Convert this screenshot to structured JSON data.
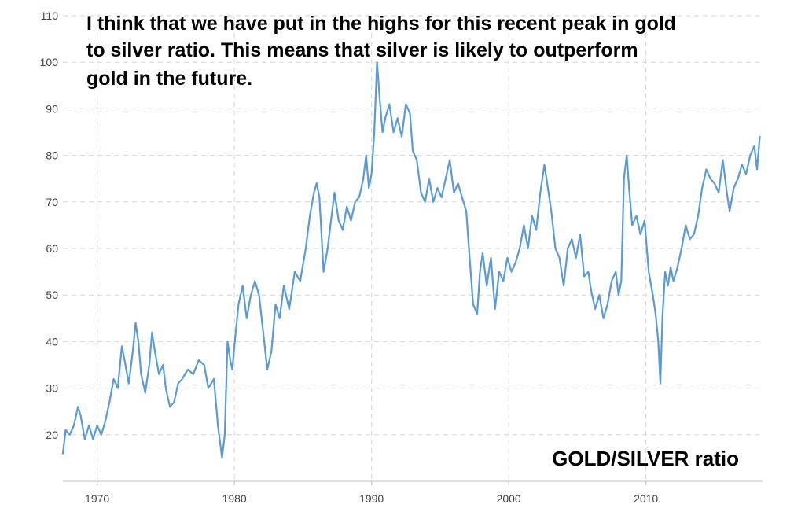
{
  "annotation": {
    "lines": [
      "I think that we have put in the highs for this recent peak in gold",
      "to silver ratio. This means that silver is likely to outperform",
      "gold in the future."
    ]
  },
  "chart_data": {
    "type": "line",
    "title": "GOLD/SILVER ratio",
    "xlabel": "",
    "ylabel": "",
    "xlim": [
      1967.5,
      2018.5
    ],
    "ylim": [
      10,
      110
    ],
    "yticks": [
      20,
      30,
      40,
      50,
      60,
      70,
      80,
      90,
      100,
      110
    ],
    "xticks": [
      1970,
      1980,
      1990,
      2000,
      2010
    ],
    "grid": true,
    "legend": "none",
    "colors": {
      "line": "#5b9bd5",
      "grid": "#d6d6d6",
      "text": "#444444"
    },
    "series": [
      {
        "name": "",
        "x": [
          1967.5,
          1967.7,
          1968.0,
          1968.3,
          1968.6,
          1968.8,
          1969.1,
          1969.4,
          1969.7,
          1970.0,
          1970.3,
          1970.6,
          1970.9,
          1971.2,
          1971.5,
          1971.8,
          1972.0,
          1972.3,
          1972.6,
          1972.8,
          1973.0,
          1973.2,
          1973.5,
          1973.8,
          1974.0,
          1974.2,
          1974.5,
          1974.8,
          1975.0,
          1975.3,
          1975.6,
          1975.9,
          1976.2,
          1976.6,
          1977.0,
          1977.4,
          1977.8,
          1978.1,
          1978.5,
          1978.8,
          1979.1,
          1979.3,
          1979.5,
          1979.7,
          1979.85,
          1980.0,
          1980.3,
          1980.6,
          1980.9,
          1981.2,
          1981.5,
          1981.8,
          1982.1,
          1982.4,
          1982.7,
          1983.0,
          1983.3,
          1983.6,
          1984.0,
          1984.4,
          1984.8,
          1985.2,
          1985.5,
          1985.8,
          1986.0,
          1986.2,
          1986.5,
          1986.8,
          1987.0,
          1987.3,
          1987.6,
          1987.9,
          1988.2,
          1988.5,
          1988.8,
          1989.1,
          1989.4,
          1989.6,
          1989.8,
          1990.0,
          1990.2,
          1990.4,
          1990.6,
          1990.8,
          1991.0,
          1991.3,
          1991.6,
          1991.9,
          1992.2,
          1992.5,
          1992.8,
          1993.0,
          1993.3,
          1993.6,
          1993.9,
          1994.2,
          1994.5,
          1994.8,
          1995.1,
          1995.4,
          1995.7,
          1996.0,
          1996.3,
          1996.6,
          1996.9,
          1997.1,
          1997.4,
          1997.7,
          1997.9,
          1998.1,
          1998.4,
          1998.7,
          1999.0,
          1999.3,
          1999.6,
          1999.9,
          2000.2,
          2000.5,
          2000.8,
          2001.1,
          2001.4,
          2001.7,
          2002.0,
          2002.3,
          2002.6,
          2002.9,
          2003.1,
          2003.4,
          2003.7,
          2004.0,
          2004.3,
          2004.6,
          2004.9,
          2005.2,
          2005.5,
          2005.8,
          2006.0,
          2006.3,
          2006.6,
          2006.9,
          2007.2,
          2007.5,
          2007.8,
          2008.0,
          2008.2,
          2008.4,
          2008.6,
          2008.8,
          2009.0,
          2009.3,
          2009.6,
          2009.9,
          2010.2,
          2010.5,
          2010.7,
          2010.9,
          2011.05,
          2011.2,
          2011.4,
          2011.6,
          2011.8,
          2012.0,
          2012.3,
          2012.6,
          2012.9,
          2013.2,
          2013.5,
          2013.8,
          2014.1,
          2014.4,
          2014.7,
          2015.0,
          2015.3,
          2015.6,
          2015.9,
          2016.1,
          2016.4,
          2016.7,
          2017.0,
          2017.3,
          2017.6,
          2017.9,
          2018.1,
          2018.3
        ],
        "values": [
          16,
          21,
          20,
          22,
          26,
          24,
          19,
          22,
          19,
          22,
          20,
          23,
          27,
          32,
          30,
          39,
          36,
          31,
          38,
          44,
          40,
          33,
          29,
          35,
          42,
          38,
          33,
          35,
          30,
          26,
          27,
          31,
          32,
          34,
          33,
          36,
          35,
          30,
          32,
          22,
          15,
          20,
          40,
          36,
          34,
          39,
          48,
          52,
          45,
          50,
          53,
          50,
          42,
          34,
          38,
          48,
          45,
          52,
          47,
          55,
          53,
          60,
          67,
          72,
          74,
          71,
          55,
          60,
          65,
          72,
          66,
          64,
          69,
          66,
          70,
          71,
          75,
          80,
          73,
          76,
          85,
          100,
          92,
          85,
          88,
          91,
          85,
          88,
          84,
          91,
          89,
          81,
          79,
          72,
          70,
          75,
          70,
          73,
          71,
          75,
          79,
          72,
          74,
          71,
          68,
          60,
          48,
          46,
          55,
          59,
          52,
          58,
          47,
          55,
          53,
          58,
          55,
          57,
          60,
          65,
          60,
          67,
          64,
          72,
          78,
          72,
          68,
          60,
          58,
          52,
          60,
          62,
          58,
          63,
          54,
          55,
          51,
          47,
          50,
          45,
          48,
          53,
          55,
          50,
          53,
          75,
          80,
          72,
          65,
          67,
          63,
          66,
          55,
          50,
          46,
          40,
          31,
          45,
          55,
          52,
          56,
          53,
          56,
          60,
          65,
          62,
          63,
          67,
          73,
          77,
          75,
          74,
          72,
          79,
          72,
          68,
          73,
          75,
          78,
          76,
          80,
          82,
          77,
          84
        ]
      }
    ]
  }
}
